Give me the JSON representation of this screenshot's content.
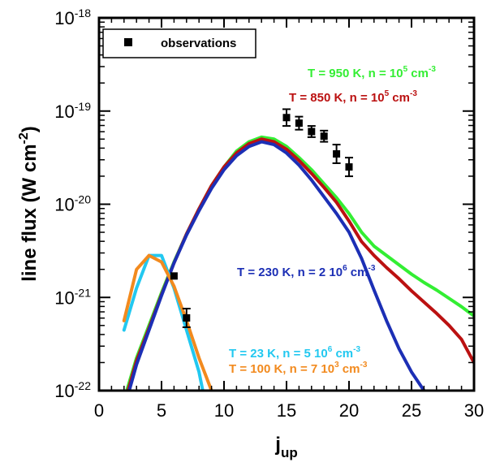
{
  "chart_data": {
    "type": "line",
    "title": "",
    "xlabel": {
      "base": "j",
      "sub": "up"
    },
    "ylabel": {
      "text": "line flux (W cm",
      "sup": "-2",
      "close": ")"
    },
    "x_range": [
      0,
      30
    ],
    "y_range_log10": [
      -22,
      -18
    ],
    "x_ticks": [
      0,
      5,
      10,
      15,
      20,
      25,
      30
    ],
    "x_tick_labels": [
      "0",
      "5",
      "10",
      "15",
      "20",
      "25",
      "30"
    ],
    "y_ticks": [
      {
        "value_log10": -22,
        "base": "10",
        "exp": "-22"
      },
      {
        "value_log10": -21,
        "base": "10",
        "exp": "-21"
      },
      {
        "value_log10": -20,
        "base": "10",
        "exp": "-20"
      },
      {
        "value_log10": -19,
        "base": "10",
        "exp": "-19"
      },
      {
        "value_log10": -18,
        "base": "10",
        "exp": "-18"
      }
    ],
    "legend": {
      "position": "top-left",
      "label": "observations"
    },
    "series": [
      {
        "name": "T = 950 K, n = 10^5 cm^-3",
        "color": "#33ee33",
        "x": [
          2,
          3,
          4,
          5,
          6,
          7,
          8,
          9,
          10,
          11,
          12,
          13,
          14,
          15,
          16,
          17,
          18,
          19,
          20,
          21,
          22,
          23,
          24,
          25,
          26,
          27,
          28,
          29,
          30
        ],
        "log10_flux": [
          -22.1,
          -21.65,
          -21.3,
          -20.95,
          -20.62,
          -20.32,
          -20.05,
          -19.8,
          -19.6,
          -19.43,
          -19.33,
          -19.28,
          -19.3,
          -19.38,
          -19.5,
          -19.63,
          -19.78,
          -19.93,
          -20.1,
          -20.3,
          -20.45,
          -20.55,
          -20.65,
          -20.75,
          -20.84,
          -20.92,
          -21.01,
          -21.1,
          -21.2
        ],
        "label": {
          "parts": [
            {
              "t": "T = 950 K, n = 10"
            },
            {
              "t": "5",
              "sup": true
            },
            {
              "t": " cm"
            },
            {
              "t": "-3",
              "sup": true
            }
          ]
        }
      },
      {
        "name": "T = 850 K, n = 10^5 cm^-3",
        "color": "#bb1111",
        "x": [
          2,
          3,
          4,
          5,
          6,
          7,
          8,
          9,
          10,
          11,
          12,
          13,
          14,
          15,
          16,
          17,
          18,
          19,
          20,
          21,
          22,
          23,
          24,
          25,
          26,
          27,
          28,
          29,
          30
        ],
        "log10_flux": [
          -22.15,
          -21.68,
          -21.33,
          -20.97,
          -20.63,
          -20.32,
          -20.05,
          -19.8,
          -19.6,
          -19.45,
          -19.35,
          -19.3,
          -19.33,
          -19.41,
          -19.53,
          -19.67,
          -19.82,
          -19.98,
          -20.18,
          -20.4,
          -20.55,
          -20.68,
          -20.8,
          -20.93,
          -21.05,
          -21.17,
          -21.3,
          -21.45,
          -21.7
        ],
        "label": {
          "parts": [
            {
              "t": "T = 850 K, n = 10"
            },
            {
              "t": "5",
              "sup": true
            },
            {
              "t": " cm"
            },
            {
              "t": "-3",
              "sup": true
            }
          ]
        }
      },
      {
        "name": "T = 230 K, n = 2 10^6 cm^-3",
        "color": "#1c2fb5",
        "x": [
          2,
          3,
          4,
          5,
          6,
          7,
          8,
          9,
          10,
          11,
          12,
          13,
          14,
          15,
          16,
          17,
          18,
          19,
          20,
          21,
          22,
          23,
          24,
          25,
          26,
          27
        ],
        "log10_flux": [
          -22.2,
          -21.72,
          -21.35,
          -20.98,
          -20.63,
          -20.33,
          -20.07,
          -19.83,
          -19.63,
          -19.48,
          -19.38,
          -19.33,
          -19.36,
          -19.45,
          -19.58,
          -19.74,
          -19.92,
          -20.1,
          -20.3,
          -20.58,
          -20.92,
          -21.25,
          -21.55,
          -21.8,
          -22.0,
          -22.2
        ],
        "label": {
          "parts": [
            {
              "t": "T = 230 K, n = 2 10"
            },
            {
              "t": "6",
              "sup": true
            },
            {
              "t": " cm"
            },
            {
              "t": "-3",
              "sup": true
            }
          ]
        }
      },
      {
        "name": "T = 23 K, n = 5 10^6 cm^-3",
        "color": "#22c8f0",
        "x": [
          2,
          3,
          4,
          5,
          6,
          7,
          8,
          8.6
        ],
        "log10_flux": [
          -21.35,
          -20.9,
          -20.55,
          -20.55,
          -20.9,
          -21.35,
          -21.8,
          -22.2
        ],
        "label": {
          "parts": [
            {
              "t": "T =   23 K, n = 5 10"
            },
            {
              "t": "6",
              "sup": true
            },
            {
              "t": " cm"
            },
            {
              "t": "-3",
              "sup": true
            }
          ]
        }
      },
      {
        "name": "T = 100 K, n = 7 10^3 cm^-3",
        "color": "#f28a1e",
        "x": [
          2,
          3,
          4,
          5,
          6,
          7,
          8,
          9,
          9.6
        ],
        "log10_flux": [
          -21.25,
          -20.7,
          -20.55,
          -20.62,
          -20.88,
          -21.25,
          -21.65,
          -22.0,
          -22.25
        ],
        "label": {
          "parts": [
            {
              "t": "T = 100 K, n = 7 10"
            },
            {
              "t": "3",
              "sup": true
            },
            {
              "t": " cm"
            },
            {
              "t": "-3",
              "sup": true
            }
          ]
        }
      }
    ],
    "observations": [
      {
        "x": 6,
        "log10_flux": -20.77,
        "err": 0.0
      },
      {
        "x": 7,
        "log10_flux": -21.22,
        "err": 0.1
      },
      {
        "x": 15,
        "log10_flux": -19.07,
        "err": 0.09
      },
      {
        "x": 16,
        "log10_flux": -19.13,
        "err": 0.07
      },
      {
        "x": 17,
        "log10_flux": -19.22,
        "err": 0.06
      },
      {
        "x": 18,
        "log10_flux": -19.27,
        "err": 0.06
      },
      {
        "x": 19,
        "log10_flux": -19.46,
        "err": 0.1
      },
      {
        "x": 20,
        "log10_flux": -19.6,
        "err": 0.1
      }
    ]
  }
}
